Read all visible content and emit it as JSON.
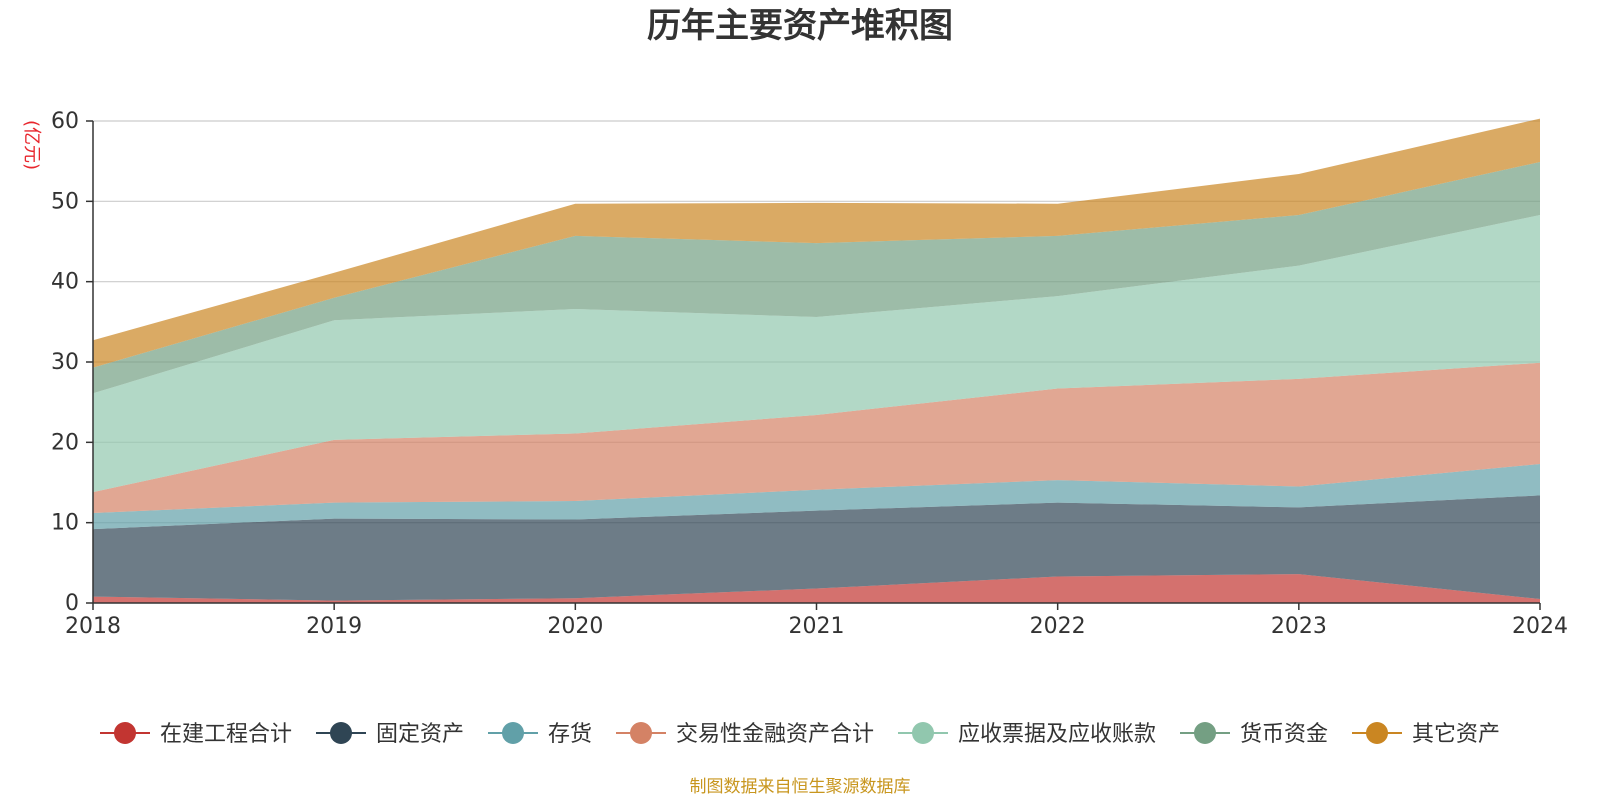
{
  "chart_data": {
    "type": "area",
    "stacked": true,
    "title": "历年主要资产堆积图",
    "ylabel": "(亿元)",
    "x": [
      "2018",
      "2019",
      "2020",
      "2021",
      "2022",
      "2023",
      "2024"
    ],
    "ylim": [
      0,
      60
    ],
    "yticks": [
      "0",
      "10",
      "20",
      "30",
      "40",
      "50",
      "60"
    ],
    "grid": true,
    "legend_position": "bottom",
    "series": [
      {
        "name": "在建工程合计",
        "color": "#c23531",
        "values": [
          0.8,
          0.3,
          0.6,
          1.8,
          3.3,
          3.6,
          0.5
        ]
      },
      {
        "name": "固定资产",
        "color": "#2f4554",
        "values": [
          8.4,
          10.2,
          9.8,
          9.7,
          9.2,
          8.3,
          12.9
        ]
      },
      {
        "name": "存货",
        "color": "#61a0a8",
        "values": [
          2.0,
          2.0,
          2.3,
          2.6,
          2.8,
          2.6,
          3.9
        ]
      },
      {
        "name": "交易性金融资产合计",
        "color": "#d48265",
        "values": [
          2.6,
          7.8,
          8.4,
          9.3,
          11.4,
          13.4,
          12.6
        ]
      },
      {
        "name": "应收票据及应收账款",
        "color": "#91c7ae",
        "values": [
          12.3,
          14.9,
          15.5,
          12.2,
          11.5,
          14.1,
          18.4
        ]
      },
      {
        "name": "货币资金",
        "color": "#749f83",
        "values": [
          3.2,
          2.8,
          9.1,
          9.2,
          7.5,
          6.3,
          6.6
        ]
      },
      {
        "name": "其它资产",
        "color": "#ca8622",
        "values": [
          3.4,
          3.1,
          4.0,
          5.0,
          4.0,
          5.1,
          5.4
        ]
      }
    ],
    "source": "制图数据来自恒生聚源数据库"
  }
}
